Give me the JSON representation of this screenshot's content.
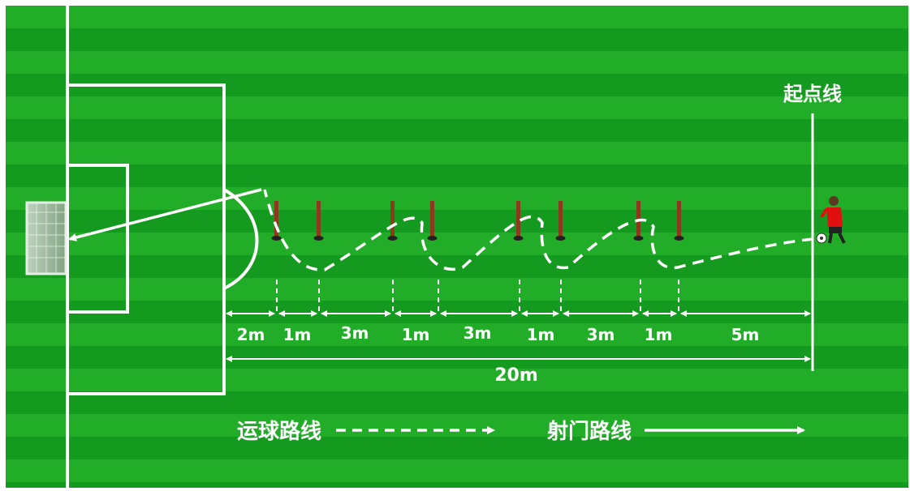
{
  "diagram": {
    "start_line_label": "起点线",
    "segments": [
      {
        "label": "2m"
      },
      {
        "label": "1m"
      },
      {
        "label": "3m"
      },
      {
        "label": "1m"
      },
      {
        "label": "3m"
      },
      {
        "label": "1m"
      },
      {
        "label": "3m"
      },
      {
        "label": "1m"
      },
      {
        "label": "5m"
      }
    ],
    "total_label": "20m",
    "legend": {
      "dribble_label": "运球路线",
      "shoot_label": "射门路线"
    },
    "colors": {
      "field_dark": "#149a1e",
      "field_light": "#27b52c",
      "lines": "#ffffff",
      "pole": "#8b3a1e",
      "player_shirt": "#e01010"
    }
  }
}
